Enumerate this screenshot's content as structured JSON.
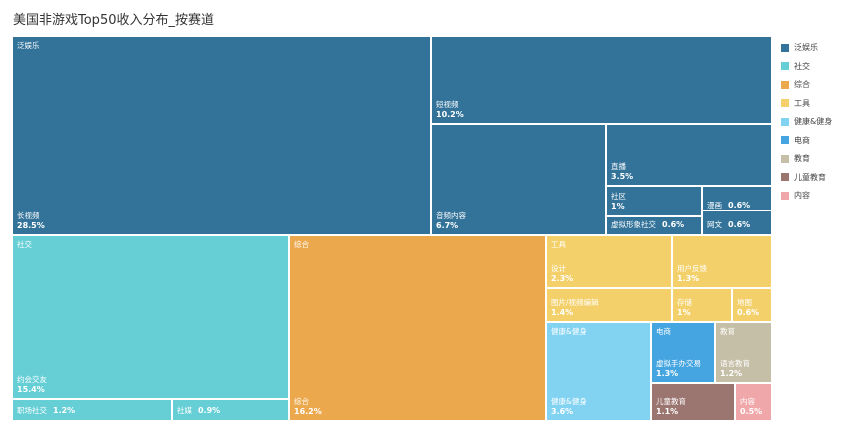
{
  "title": "美国非游戏Top50收入分布_按赛道",
  "colors": {
    "泛娱乐": "#33739a",
    "社交": "#66cfd6",
    "综合": "#eba84d",
    "工具": "#f3d06a",
    "健康&健身": "#82d3f2",
    "电商": "#44a5e0",
    "教育": "#c6bfa8",
    "儿童教育": "#9b7670",
    "内容": "#f0a7a9"
  },
  "legend": [
    "泛娱乐",
    "社交",
    "综合",
    "工具",
    "健康&健身",
    "电商",
    "教育",
    "儿童教育",
    "内容"
  ],
  "chart_data": {
    "type": "treemap",
    "title": "美国非游戏Top50收入分布_按赛道",
    "unit": "%",
    "groups": [
      {
        "name": "泛娱乐",
        "children": [
          {
            "name": "长视频",
            "value": 28.5
          },
          {
            "name": "短视频",
            "value": 10.2
          },
          {
            "name": "音频内容",
            "value": 6.7
          },
          {
            "name": "直播",
            "value": 3.5
          },
          {
            "name": "社区",
            "value": 1
          },
          {
            "name": "虚拟形象社交",
            "value": 0.6
          },
          {
            "name": "漫画",
            "value": 0.6
          },
          {
            "name": "网文",
            "value": 0.6
          }
        ]
      },
      {
        "name": "社交",
        "children": [
          {
            "name": "约会交友",
            "value": 15.4
          },
          {
            "name": "职场社交",
            "value": 1.2
          },
          {
            "name": "社媒",
            "value": 0.9
          }
        ]
      },
      {
        "name": "综合",
        "children": [
          {
            "name": "综合",
            "value": 16.2
          }
        ]
      },
      {
        "name": "工具",
        "children": [
          {
            "name": "设计",
            "value": 2.3
          },
          {
            "name": "用户反馈",
            "value": 1.3
          },
          {
            "name": "图片/视频编辑",
            "value": 1.4
          },
          {
            "name": "存储",
            "value": 1
          },
          {
            "name": "地图",
            "value": 0.6
          }
        ]
      },
      {
        "name": "健康&健身",
        "children": [
          {
            "name": "健康&健身",
            "value": 3.6
          }
        ]
      },
      {
        "name": "电商",
        "children": [
          {
            "name": "虚拟手办交易",
            "value": 1.3
          }
        ]
      },
      {
        "name": "教育",
        "children": [
          {
            "name": "语言教育",
            "value": 1.2
          }
        ]
      },
      {
        "name": "儿童教育",
        "children": [
          {
            "name": "儿童教育",
            "value": 1.1
          }
        ]
      },
      {
        "name": "内容",
        "children": [
          {
            "name": "内容",
            "value": 0.5
          }
        ]
      }
    ]
  }
}
